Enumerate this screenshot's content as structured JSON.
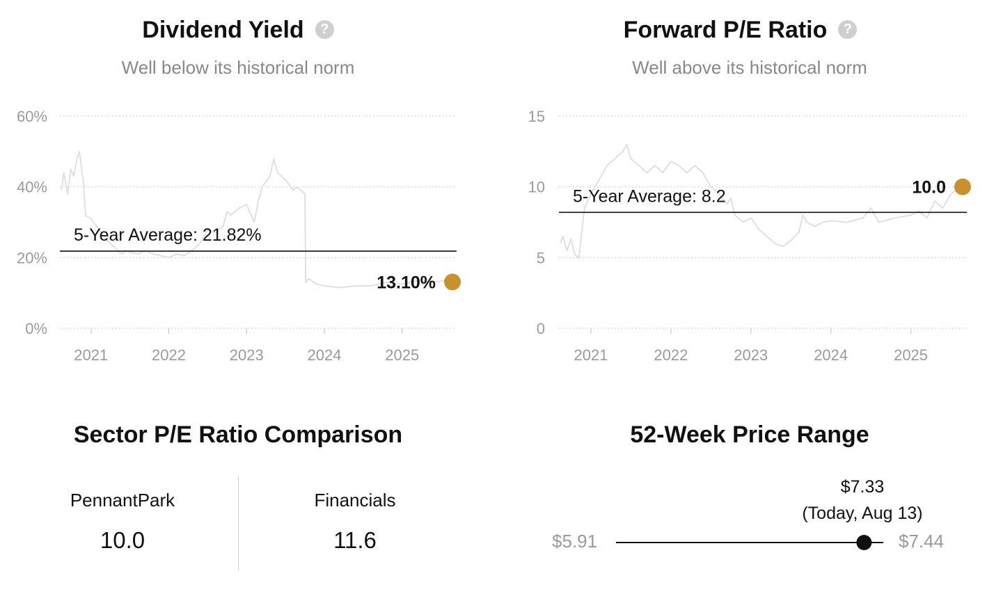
{
  "charts": {
    "dividend_yield": {
      "title": "Dividend Yield",
      "subtitle": "Well below its historical norm",
      "help_icon": "question-circle-icon"
    },
    "forward_pe": {
      "title": "Forward P/E Ratio",
      "subtitle": "Well above its historical norm",
      "help_icon": "question-circle-icon"
    }
  },
  "chart_data": [
    {
      "type": "line",
      "title": "Dividend Yield",
      "subtitle": "Well below its historical norm",
      "y_unit": "%",
      "ylim": [
        0,
        60
      ],
      "yticks": [
        0,
        20,
        40,
        60
      ],
      "ytick_labels": [
        "0%",
        "20%",
        "40%",
        "60%"
      ],
      "xlim": [
        2020.6,
        2025.7
      ],
      "xticks": [
        2021,
        2022,
        2023,
        2024,
        2025
      ],
      "xtick_labels": [
        "2021",
        "2022",
        "2023",
        "2024",
        "2025"
      ],
      "grid": "horizontal-dotted",
      "average": {
        "value": 21.82,
        "label": "5-Year Average: 21.82%"
      },
      "current": {
        "value": 13.1,
        "label": "13.10%",
        "color": "#c8912e"
      },
      "series": [
        {
          "color": "#dddddd",
          "x": [
            2020.62,
            2020.65,
            2020.7,
            2020.74,
            2020.78,
            2020.82,
            2020.85,
            2020.9,
            2020.93,
            2021.0,
            2021.1,
            2021.2,
            2021.3,
            2021.4,
            2021.45,
            2021.5,
            2021.6,
            2021.7,
            2021.8,
            2021.9,
            2022.0,
            2022.1,
            2022.2,
            2022.3,
            2022.4,
            2022.5,
            2022.6,
            2022.7,
            2022.75,
            2022.8,
            2022.9,
            2023.0,
            2023.1,
            2023.15,
            2023.2,
            2023.3,
            2023.35,
            2023.4,
            2023.5,
            2023.6,
            2023.65,
            2023.7,
            2023.75,
            2023.76,
            2023.8,
            2023.9,
            2024.0,
            2024.2,
            2024.4,
            2024.6,
            2024.8,
            2025.0,
            2025.2,
            2025.4,
            2025.55,
            2025.62
          ],
          "y": [
            39,
            44,
            38,
            45,
            43,
            48,
            50,
            42,
            32,
            31,
            28,
            25,
            23,
            21,
            22,
            21.5,
            21,
            22,
            21,
            20.5,
            20,
            21,
            20.5,
            22,
            24,
            28,
            27,
            29,
            33,
            32,
            34,
            35,
            30,
            36,
            40,
            43,
            48,
            44,
            42,
            39,
            40,
            39,
            38,
            13,
            14,
            12.5,
            12,
            11.5,
            12,
            12,
            13,
            12.5,
            13.5,
            13,
            13.5,
            13.1
          ]
        }
      ]
    },
    {
      "type": "line",
      "title": "Forward P/E Ratio",
      "subtitle": "Well above its historical norm",
      "ylim": [
        0,
        15
      ],
      "yticks": [
        0,
        5,
        10,
        15
      ],
      "ytick_labels": [
        "0",
        "5",
        "10",
        "15"
      ],
      "xlim": [
        2020.6,
        2025.7
      ],
      "xticks": [
        2021,
        2022,
        2023,
        2024,
        2025
      ],
      "xtick_labels": [
        "2021",
        "2022",
        "2023",
        "2024",
        "2025"
      ],
      "grid": "horizontal-dotted",
      "average": {
        "value": 8.2,
        "label": "5-Year Average: 8.2"
      },
      "current": {
        "value": 10.0,
        "label": "10.0",
        "color": "#c8912e"
      },
      "series": [
        {
          "color": "#dddddd",
          "x": [
            2020.62,
            2020.65,
            2020.7,
            2020.75,
            2020.8,
            2020.85,
            2020.88,
            2020.92,
            2021.0,
            2021.1,
            2021.2,
            2021.3,
            2021.4,
            2021.45,
            2021.5,
            2021.6,
            2021.7,
            2021.8,
            2021.9,
            2022.0,
            2022.1,
            2022.2,
            2022.3,
            2022.4,
            2022.5,
            2022.6,
            2022.7,
            2022.75,
            2022.8,
            2022.9,
            2023.0,
            2023.1,
            2023.2,
            2023.3,
            2023.4,
            2023.5,
            2023.6,
            2023.65,
            2023.7,
            2023.8,
            2023.9,
            2024.0,
            2024.2,
            2024.4,
            2024.5,
            2024.6,
            2024.8,
            2025.0,
            2025.1,
            2025.2,
            2025.3,
            2025.4,
            2025.5,
            2025.62
          ],
          "y": [
            6,
            6.5,
            5.5,
            6.3,
            5.2,
            5.0,
            6.5,
            8.5,
            9.5,
            10.5,
            11.5,
            12,
            12.5,
            13,
            12,
            11.5,
            11,
            11.5,
            11,
            11.8,
            11.5,
            11,
            11.5,
            11,
            10,
            9.5,
            8.8,
            9.2,
            8,
            7.5,
            7.8,
            7.0,
            6.5,
            6.0,
            5.8,
            6.2,
            6.8,
            8.0,
            7.5,
            7.2,
            7.5,
            7.6,
            7.5,
            7.8,
            8.5,
            7.5,
            7.8,
            8.0,
            8.3,
            7.8,
            9.0,
            8.5,
            9.5,
            10.0
          ]
        }
      ]
    }
  ],
  "sector": {
    "title": "Sector P/E Ratio Comparison",
    "items": [
      {
        "name": "PennantPark",
        "value": "10.0"
      },
      {
        "name": "Financials",
        "value": "11.6"
      }
    ]
  },
  "price_range": {
    "title": "52-Week Price Range",
    "low_label": "$5.91",
    "high_label": "$7.44",
    "low": 5.91,
    "high": 7.44,
    "current": 7.33,
    "current_label": "$7.33",
    "current_note": "(Today, Aug 13)"
  }
}
